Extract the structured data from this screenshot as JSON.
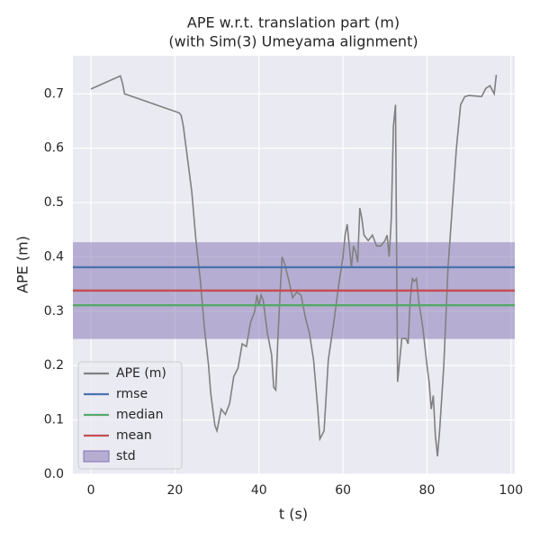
{
  "chart_data": {
    "type": "line",
    "title": "APE w.r.t. translation part (m)",
    "subtitle": "(with Sim(3) Umeyama alignment)",
    "x_label": "t (s)",
    "y_label": "APE (m)",
    "xlim": [
      -4.3,
      100.9
    ],
    "ylim": [
      0,
      0.77
    ],
    "xticks": [
      0,
      20,
      40,
      60,
      80,
      100
    ],
    "yticks": [
      {
        "value": 0,
        "label": "0.0"
      },
      0.1,
      0.2,
      0.3,
      0.4,
      0.5,
      0.6,
      0.7
    ],
    "grid": true,
    "legend": "lower left",
    "series": [
      {
        "name": "APE (m)",
        "color": "#808080",
        "x": [
          0,
          7,
          7.5,
          8,
          21,
          21.5,
          22,
          23,
          24,
          25,
          26,
          27,
          28,
          28.5,
          29,
          29.5,
          30,
          31,
          32,
          33,
          34,
          35,
          36,
          37,
          38,
          39,
          39.5,
          40,
          40.5,
          41,
          42,
          43,
          43.5,
          44,
          44.5,
          45,
          45.5,
          46,
          47,
          48,
          49,
          50,
          51,
          52,
          53,
          54,
          54.5,
          55.5,
          56.5,
          58,
          59,
          60,
          60.5,
          61,
          62,
          62.5,
          63,
          63.5,
          64,
          64.5,
          65,
          66,
          67,
          68,
          69,
          70,
          70.5,
          71,
          71.5,
          72,
          72.5,
          73,
          73.5,
          74,
          75,
          75.5,
          76,
          76.5,
          77,
          77.5,
          78,
          79,
          80,
          80.5,
          81,
          81.5,
          82,
          82.5,
          83,
          84,
          85,
          86,
          87,
          88,
          89,
          90,
          93,
          94,
          95,
          96,
          96.5
        ],
        "values": [
          0.709,
          0.733,
          0.72,
          0.7,
          0.665,
          0.66,
          0.64,
          0.58,
          0.52,
          0.43,
          0.36,
          0.27,
          0.2,
          0.15,
          0.12,
          0.09,
          0.08,
          0.12,
          0.11,
          0.13,
          0.18,
          0.195,
          0.24,
          0.235,
          0.28,
          0.3,
          0.33,
          0.31,
          0.33,
          0.32,
          0.26,
          0.22,
          0.16,
          0.155,
          0.25,
          0.33,
          0.4,
          0.39,
          0.36,
          0.325,
          0.335,
          0.33,
          0.29,
          0.26,
          0.21,
          0.12,
          0.065,
          0.08,
          0.21,
          0.29,
          0.35,
          0.4,
          0.44,
          0.46,
          0.38,
          0.42,
          0.41,
          0.39,
          0.49,
          0.47,
          0.44,
          0.43,
          0.44,
          0.42,
          0.42,
          0.43,
          0.44,
          0.4,
          0.47,
          0.64,
          0.68,
          0.17,
          0.21,
          0.25,
          0.25,
          0.24,
          0.32,
          0.36,
          0.355,
          0.36,
          0.32,
          0.27,
          0.2,
          0.17,
          0.12,
          0.145,
          0.07,
          0.033,
          0.08,
          0.2,
          0.38,
          0.49,
          0.6,
          0.68,
          0.695,
          0.697,
          0.695,
          0.71,
          0.715,
          0.7,
          0.735
        ]
      }
    ],
    "stats": [
      {
        "name": "rmse",
        "color": "#4c72b0",
        "value": 0.381
      },
      {
        "name": "median",
        "color": "#55a868",
        "value": 0.311
      },
      {
        "name": "mean",
        "color": "#c44e52",
        "value": 0.338
      }
    ],
    "std": {
      "name": "std",
      "color": "#8172b2",
      "value": 0.089
    }
  }
}
